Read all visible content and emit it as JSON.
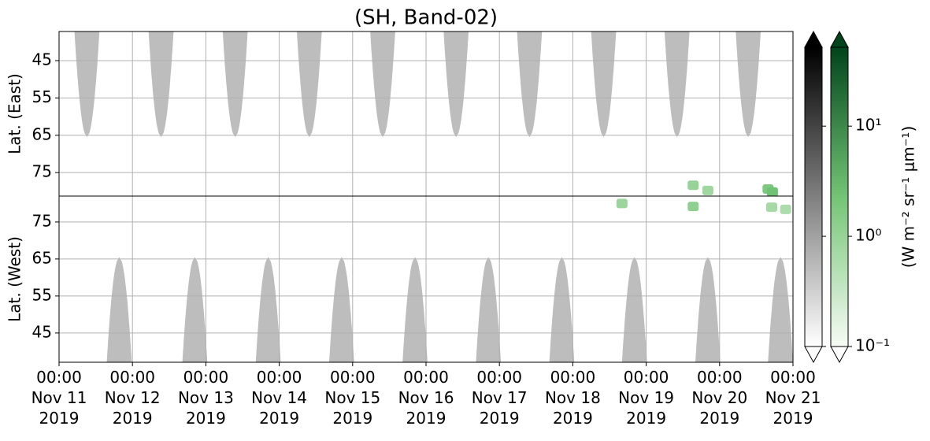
{
  "chart_data": {
    "type": "heatmap",
    "title": "(SH, Band-02)",
    "xlim": [
      0,
      10
    ],
    "xticks": [
      {
        "value": 0,
        "label": "00:00\nNov 11\n2019"
      },
      {
        "value": 1,
        "label": "00:00\nNov 12\n2019"
      },
      {
        "value": 2,
        "label": "00:00\nNov 13\n2019"
      },
      {
        "value": 3,
        "label": "00:00\nNov 14\n2019"
      },
      {
        "value": 4,
        "label": "00:00\nNov 15\n2019"
      },
      {
        "value": 5,
        "label": "00:00\nNov 16\n2019"
      },
      {
        "value": 6,
        "label": "00:00\nNov 17\n2019"
      },
      {
        "value": 7,
        "label": "00:00\nNov 18\n2019"
      },
      {
        "value": 8,
        "label": "00:00\nNov 19\n2019"
      },
      {
        "value": 9,
        "label": "00:00\nNov 20\n2019"
      },
      {
        "value": 10,
        "label": "00:00\nNov 21\n2019"
      }
    ],
    "grid": true,
    "panels": [
      {
        "ylabel": "Lat. (East)",
        "ylim": [
          37.2,
          81.3
        ],
        "inverted": true,
        "yticks": [
          45,
          55,
          65,
          75
        ],
        "lobes": {
          "x": [
            0.38,
            1.39,
            2.4,
            3.41,
            4.41,
            5.41,
            6.41,
            7.42,
            8.42,
            9.39
          ],
          "half_width": 0.17,
          "tip_lat": 65.5,
          "values": [
            0.5,
            0.5,
            0.5,
            0.5,
            0.5,
            0.5,
            0.5,
            0.5,
            0.5,
            0.5
          ]
        },
        "green": {
          "x": [
            8.64,
            8.84,
            9.66,
            9.72
          ],
          "lat": [
            78.4,
            79.8,
            79.4,
            80.2
          ],
          "values": [
            1.0,
            0.8,
            1.8,
            2.4
          ]
        }
      },
      {
        "ylabel": "Lat. (West)",
        "ylim": [
          37.1,
          82
        ],
        "inverted": false,
        "yticks": [
          45,
          55,
          65,
          75
        ],
        "lobes": {
          "x": [
            0.82,
            1.85,
            2.85,
            3.85,
            4.85,
            5.85,
            6.85,
            7.84,
            8.84,
            9.83
          ],
          "half_width": 0.17,
          "tip_lat": 65.5,
          "values": [
            0.5,
            0.5,
            0.5,
            0.5,
            0.5,
            0.5,
            0.5,
            0.5,
            0.5,
            0.5
          ]
        },
        "green": {
          "x": [
            7.67,
            8.64,
            9.71,
            9.9
          ],
          "lat": [
            80.0,
            79.2,
            79.0,
            78.4
          ],
          "values": [
            0.9,
            1.2,
            0.7,
            0.6
          ]
        }
      }
    ],
    "colormaps": [
      [
        "#ffffff",
        "#000000"
      ],
      [
        "#f7fcf5",
        "#74c476",
        "#00441b"
      ]
    ],
    "clim": [
      0.1,
      52
    ],
    "cticks": [
      {
        "value": 0.1,
        "label": "10⁻¹"
      },
      {
        "value": 1,
        "label": "10⁰"
      },
      {
        "value": 10,
        "label": "10¹"
      }
    ],
    "clabel": "(W m⁻² sr⁻¹ μm⁻¹)"
  }
}
